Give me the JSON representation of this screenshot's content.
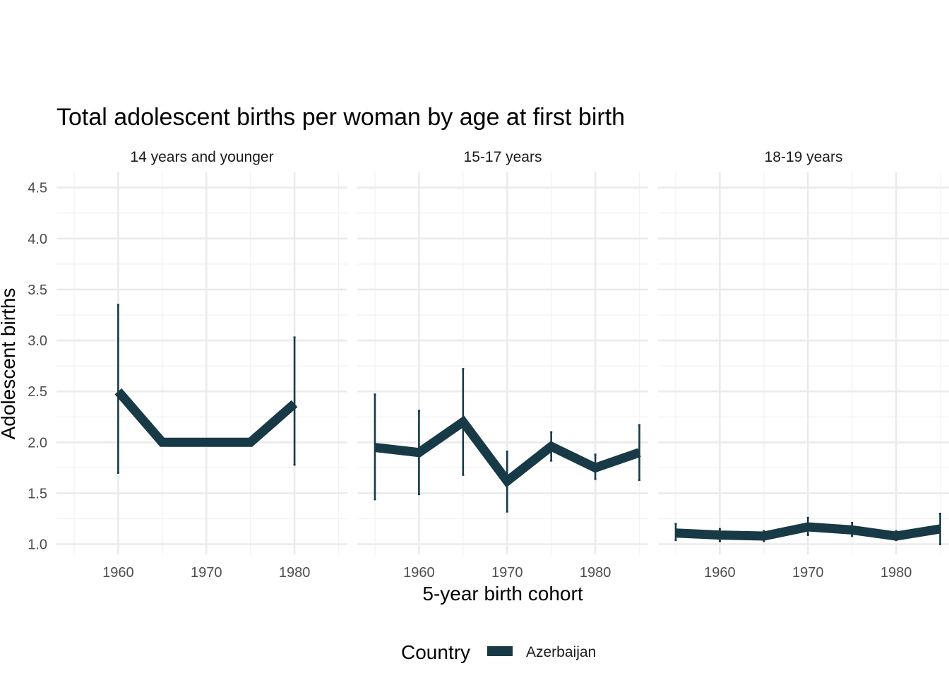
{
  "colors": {
    "series": "#173a46",
    "grid_major": "#ebebeb",
    "grid_minor": "#f2f2f2",
    "text": "#000000",
    "tick": "#4d4d4d"
  },
  "chart_data": {
    "type": "line",
    "title": "Total adolescent births per woman by age at first birth",
    "xlabel": "5-year birth cohort",
    "ylabel": "Adolescent births",
    "xlim": [
      1953,
      1986
    ],
    "ylim": [
      0.9,
      4.65
    ],
    "x_ticks": [
      1960,
      1970,
      1980
    ],
    "y_ticks": [
      "1.0",
      "1.5",
      "2.0",
      "2.5",
      "3.0",
      "3.5",
      "4.0",
      "4.5"
    ],
    "legend": {
      "title": "Country",
      "position": "bottom",
      "entries": [
        "Azerbaijan"
      ]
    },
    "panels": [
      {
        "label": "14 years and younger",
        "series": [
          {
            "name": "Azerbaijan",
            "x": [
              1960,
              1965,
              1970,
              1975,
              1980
            ],
            "y": [
              2.5,
              2.0,
              2.0,
              2.0,
              2.38
            ]
          }
        ],
        "error_bars": [
          {
            "x": 1960,
            "low": 1.7,
            "high": 3.35
          },
          {
            "x": 1980,
            "low": 1.78,
            "high": 3.03
          }
        ]
      },
      {
        "label": "15-17 years",
        "series": [
          {
            "name": "Azerbaijan",
            "x": [
              1955,
              1960,
              1965,
              1970,
              1975,
              1980,
              1985
            ],
            "y": [
              1.95,
              1.9,
              2.2,
              1.62,
              1.96,
              1.75,
              1.9
            ]
          }
        ],
        "error_bars": [
          {
            "x": 1955,
            "low": 1.44,
            "high": 2.47
          },
          {
            "x": 1960,
            "low": 1.49,
            "high": 2.31
          },
          {
            "x": 1965,
            "low": 1.68,
            "high": 2.72
          },
          {
            "x": 1970,
            "low": 1.32,
            "high": 1.91
          },
          {
            "x": 1975,
            "low": 1.82,
            "high": 2.1
          },
          {
            "x": 1980,
            "low": 1.64,
            "high": 1.88
          },
          {
            "x": 1985,
            "low": 1.63,
            "high": 2.17
          }
        ]
      },
      {
        "label": "18-19 years",
        "series": [
          {
            "name": "Azerbaijan",
            "x": [
              1955,
              1960,
              1965,
              1970,
              1975,
              1980,
              1985
            ],
            "y": [
              1.11,
              1.09,
              1.08,
              1.17,
              1.14,
              1.08,
              1.15
            ]
          }
        ],
        "error_bars": [
          {
            "x": 1955,
            "low": 1.04,
            "high": 1.2
          },
          {
            "x": 1960,
            "low": 1.03,
            "high": 1.15
          },
          {
            "x": 1965,
            "low": 1.03,
            "high": 1.13
          },
          {
            "x": 1970,
            "low": 1.09,
            "high": 1.26
          },
          {
            "x": 1975,
            "low": 1.08,
            "high": 1.21
          },
          {
            "x": 1980,
            "low": 1.04,
            "high": 1.13
          },
          {
            "x": 1985,
            "low": 1.0,
            "high": 1.3
          }
        ]
      }
    ]
  }
}
